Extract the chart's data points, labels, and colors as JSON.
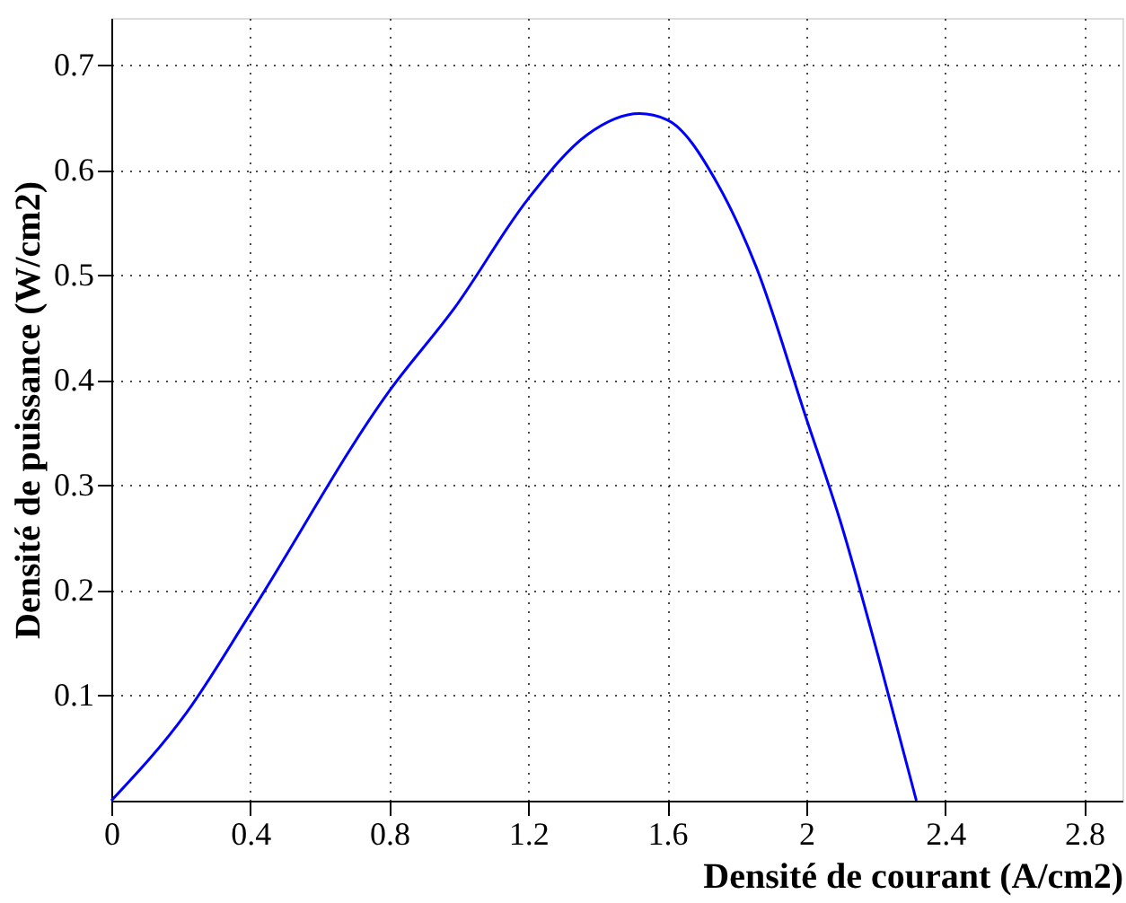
{
  "chart_data": {
    "type": "line",
    "xlabel": "Densité de courant (A/cm2)",
    "ylabel": "Densité de puissance (W/cm2)",
    "x": [
      0,
      0.217,
      0.4,
      0.8,
      0.99,
      1.2,
      1.37,
      1.52,
      1.6,
      1.745,
      1.856,
      2.0,
      2.1,
      2.21,
      2.317
    ],
    "series": [
      {
        "color": "#0000ff",
        "values": [
          0,
          0.084,
          0.178,
          0.39,
          0.47,
          0.573,
          0.634,
          0.654,
          0.648,
          0.587,
          0.508,
          0.364,
          0.264,
          0.134,
          0
        ]
      }
    ],
    "xlim": [
      0,
      2.91
    ],
    "ylim": [
      0,
      0.745
    ],
    "xticks": [
      0,
      0.4,
      0.8,
      1.2,
      1.6,
      2,
      2.4,
      2.8
    ],
    "yticks": [
      0.1,
      0.2,
      0.3,
      0.4,
      0.5,
      0.6,
      0.7
    ],
    "grid": true,
    "marker": "none",
    "line_style": "solid"
  }
}
